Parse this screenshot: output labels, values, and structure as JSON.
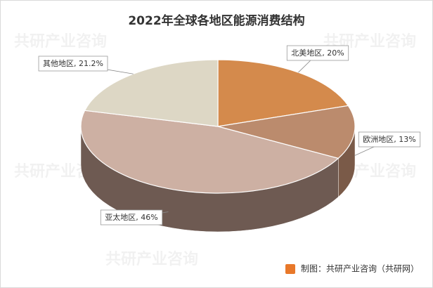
{
  "chart_data": {
    "type": "pie3d",
    "title": "2022年全球各地区能源消费结构",
    "categories": [
      "北美地区",
      "欧洲地区",
      "亚太地区",
      "其他地区"
    ],
    "values": [
      20,
      13,
      46,
      21.2
    ],
    "value_labels": [
      "20%",
      "13%",
      "46%",
      "21.2%"
    ],
    "colors": [
      "#d48a4c",
      "#bb8b6d",
      "#cdb0a3",
      "#ddd7c5"
    ],
    "side_colors": [
      "#8a5a33",
      "#7a5a48",
      "#6e5a52",
      "#8f8a7c"
    ]
  },
  "watermark": "共研产业咨询",
  "footer": "制图：共研产业咨询（共研网）"
}
